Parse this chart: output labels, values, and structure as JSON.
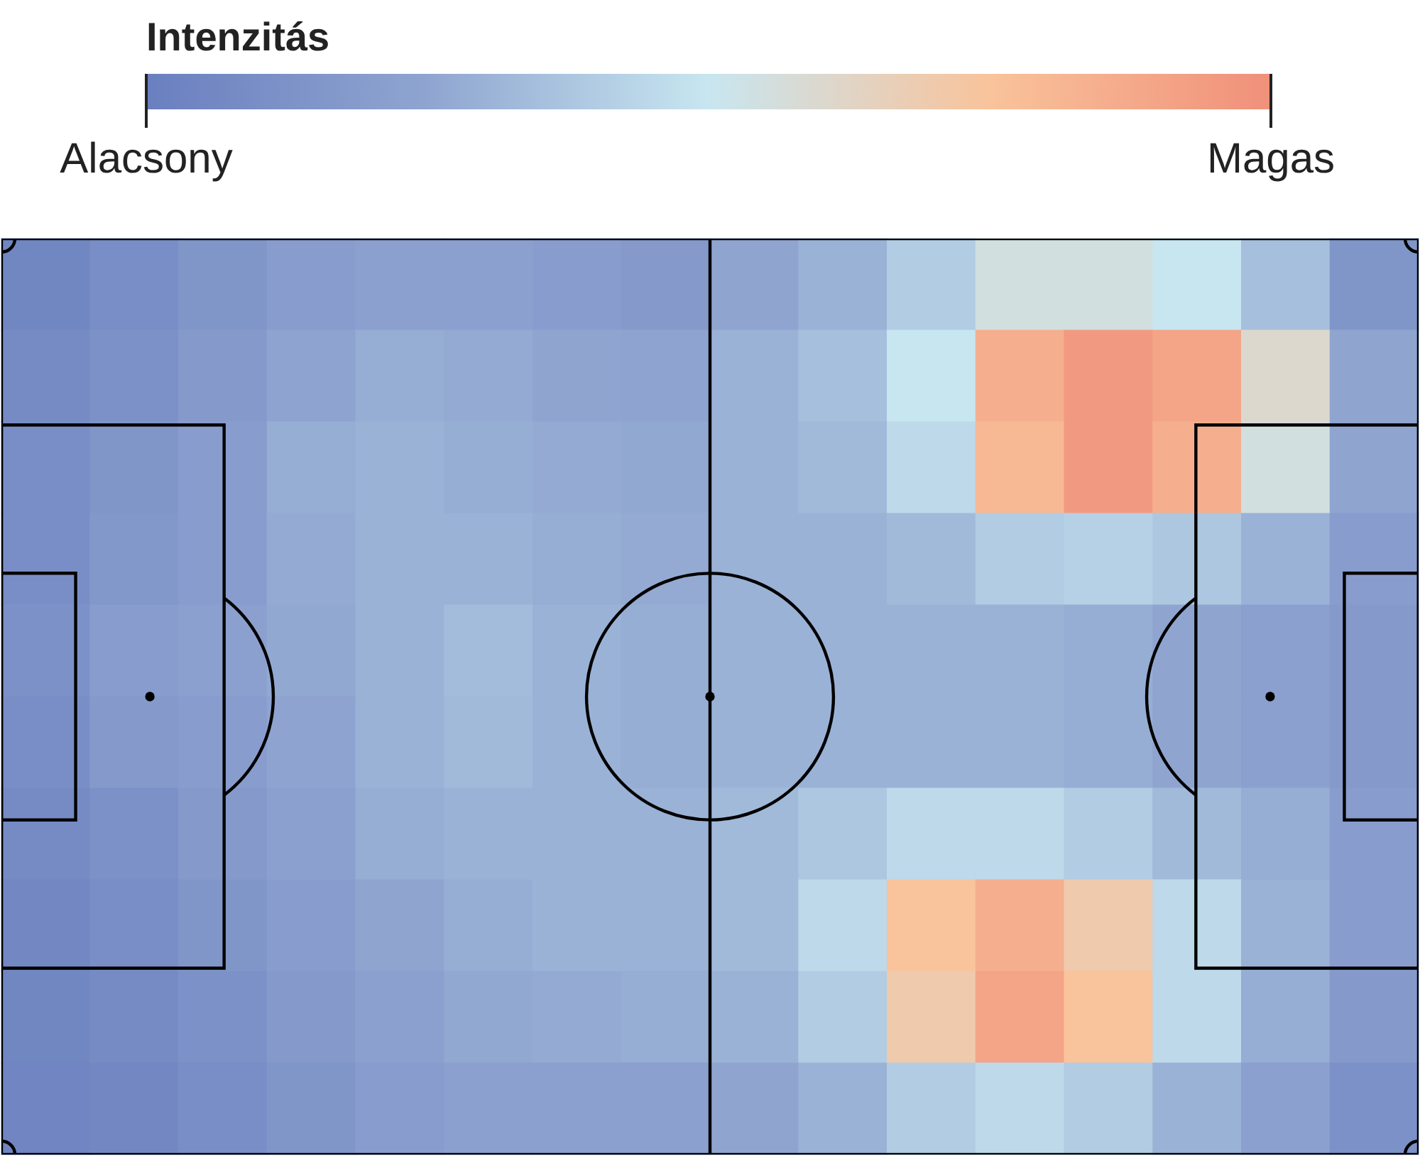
{
  "chart_data": {
    "type": "heatmap",
    "clabel": "Intenzitás",
    "tick_labels": false,
    "categories": [
      null,
      null,
      null,
      null,
      null,
      null,
      null,
      null,
      null,
      null,
      null,
      null,
      null,
      null,
      null,
      null
    ],
    "y_categories": [
      null,
      null,
      null,
      null,
      null,
      null,
      null,
      null,
      null,
      null
    ],
    "cells": [
      [
        0.05,
        0.1,
        0.15,
        0.2,
        0.22,
        0.22,
        0.2,
        0.18,
        0.25,
        0.3,
        0.4,
        0.55,
        0.55,
        0.5,
        0.35,
        0.15
      ],
      [
        0.08,
        0.12,
        0.18,
        0.24,
        0.28,
        0.27,
        0.25,
        0.24,
        0.3,
        0.35,
        0.5,
        0.85,
        0.95,
        0.9,
        0.6,
        0.25
      ],
      [
        0.1,
        0.15,
        0.2,
        0.28,
        0.3,
        0.28,
        0.27,
        0.26,
        0.3,
        0.33,
        0.45,
        0.8,
        0.95,
        0.85,
        0.55,
        0.25
      ],
      [
        0.1,
        0.16,
        0.2,
        0.27,
        0.3,
        0.3,
        0.28,
        0.27,
        0.3,
        0.3,
        0.33,
        0.4,
        0.42,
        0.38,
        0.3,
        0.2
      ],
      [
        0.12,
        0.2,
        0.22,
        0.26,
        0.3,
        0.34,
        0.3,
        0.28,
        0.3,
        0.3,
        0.3,
        0.3,
        0.28,
        0.25,
        0.22,
        0.18
      ],
      [
        0.1,
        0.18,
        0.2,
        0.24,
        0.3,
        0.33,
        0.3,
        0.28,
        0.3,
        0.3,
        0.3,
        0.3,
        0.28,
        0.25,
        0.22,
        0.18
      ],
      [
        0.08,
        0.12,
        0.18,
        0.22,
        0.28,
        0.3,
        0.3,
        0.3,
        0.33,
        0.38,
        0.45,
        0.45,
        0.4,
        0.33,
        0.28,
        0.2
      ],
      [
        0.06,
        0.1,
        0.15,
        0.2,
        0.25,
        0.28,
        0.3,
        0.3,
        0.33,
        0.45,
        0.75,
        0.85,
        0.7,
        0.45,
        0.3,
        0.2
      ],
      [
        0.05,
        0.08,
        0.12,
        0.18,
        0.22,
        0.26,
        0.27,
        0.28,
        0.3,
        0.4,
        0.7,
        0.9,
        0.75,
        0.45,
        0.28,
        0.18
      ],
      [
        0.04,
        0.06,
        0.1,
        0.15,
        0.2,
        0.22,
        0.22,
        0.22,
        0.25,
        0.3,
        0.4,
        0.45,
        0.4,
        0.3,
        0.22,
        0.12
      ]
    ],
    "clim": [
      0,
      1
    ],
    "cticks": [
      {
        "value": 0,
        "label": "Alacsony"
      },
      {
        "value": 1,
        "label": "Magas"
      }
    ]
  }
}
